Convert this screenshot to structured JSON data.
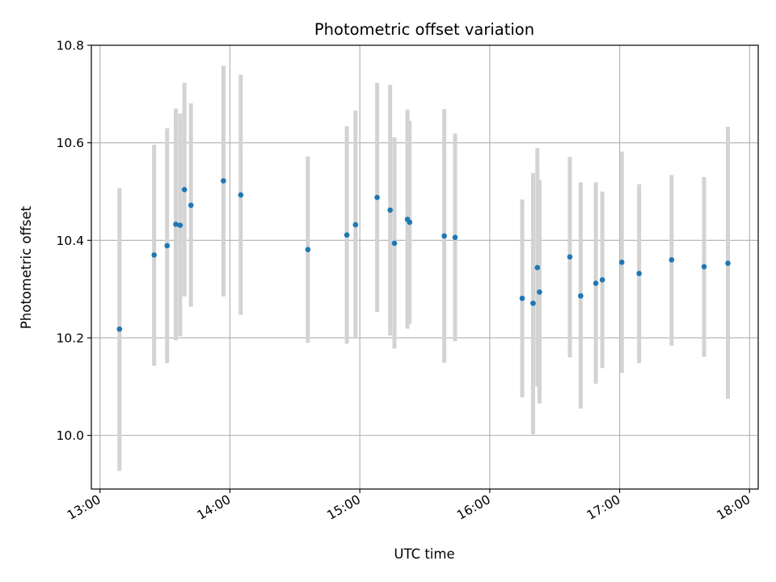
{
  "chart_data": {
    "type": "scatter",
    "title": "Photometric offset variation",
    "xlabel": "UTC time",
    "ylabel": "Photometric offset",
    "x_unit": "UTC time (HH:MM)",
    "xlim": [
      "12:56",
      "18:04"
    ],
    "ylim": [
      9.89,
      10.8
    ],
    "x_ticks": [
      "13:00",
      "14:00",
      "15:00",
      "16:00",
      "17:00",
      "18:00"
    ],
    "y_ticks": [
      "10.0",
      "10.2",
      "10.4",
      "10.6",
      "10.8"
    ],
    "grid": true,
    "errorbar_color": "#d3d3d3",
    "marker_color": "#1f77b4",
    "points": [
      {
        "x": "13:09",
        "y": 10.218,
        "ylow": 9.927,
        "yhigh": 10.507
      },
      {
        "x": "13:25",
        "y": 10.37,
        "ylow": 10.143,
        "yhigh": 10.596
      },
      {
        "x": "13:31",
        "y": 10.389,
        "ylow": 10.148,
        "yhigh": 10.63
      },
      {
        "x": "13:35",
        "y": 10.433,
        "ylow": 10.195,
        "yhigh": 10.67
      },
      {
        "x": "13:37",
        "y": 10.431,
        "ylow": 10.203,
        "yhigh": 10.66
      },
      {
        "x": "13:39",
        "y": 10.504,
        "ylow": 10.285,
        "yhigh": 10.723
      },
      {
        "x": "13:42",
        "y": 10.472,
        "ylow": 10.264,
        "yhigh": 10.681
      },
      {
        "x": "13:57",
        "y": 10.522,
        "ylow": 10.285,
        "yhigh": 10.758
      },
      {
        "x": "14:05",
        "y": 10.493,
        "ylow": 10.247,
        "yhigh": 10.74
      },
      {
        "x": "14:36",
        "y": 10.381,
        "ylow": 10.19,
        "yhigh": 10.572
      },
      {
        "x": "14:54",
        "y": 10.411,
        "ylow": 10.188,
        "yhigh": 10.634
      },
      {
        "x": "14:58",
        "y": 10.432,
        "ylow": 10.198,
        "yhigh": 10.666
      },
      {
        "x": "15:08",
        "y": 10.488,
        "ylow": 10.253,
        "yhigh": 10.723
      },
      {
        "x": "15:14",
        "y": 10.462,
        "ylow": 10.205,
        "yhigh": 10.719
      },
      {
        "x": "15:16",
        "y": 10.394,
        "ylow": 10.178,
        "yhigh": 10.611
      },
      {
        "x": "15:22",
        "y": 10.443,
        "ylow": 10.219,
        "yhigh": 10.668
      },
      {
        "x": "15:23",
        "y": 10.437,
        "ylow": 10.229,
        "yhigh": 10.645
      },
      {
        "x": "15:39",
        "y": 10.409,
        "ylow": 10.149,
        "yhigh": 10.669
      },
      {
        "x": "15:44",
        "y": 10.406,
        "ylow": 10.193,
        "yhigh": 10.619
      },
      {
        "x": "16:15",
        "y": 10.281,
        "ylow": 10.078,
        "yhigh": 10.484
      },
      {
        "x": "16:20",
        "y": 10.271,
        "ylow": 10.002,
        "yhigh": 10.538
      },
      {
        "x": "16:22",
        "y": 10.344,
        "ylow": 10.1,
        "yhigh": 10.589
      },
      {
        "x": "16:23",
        "y": 10.294,
        "ylow": 10.065,
        "yhigh": 10.524
      },
      {
        "x": "16:37",
        "y": 10.366,
        "ylow": 10.16,
        "yhigh": 10.571
      },
      {
        "x": "16:42",
        "y": 10.286,
        "ylow": 10.055,
        "yhigh": 10.519
      },
      {
        "x": "16:49",
        "y": 10.312,
        "ylow": 10.106,
        "yhigh": 10.519
      },
      {
        "x": "16:52",
        "y": 10.319,
        "ylow": 10.138,
        "yhigh": 10.5
      },
      {
        "x": "17:01",
        "y": 10.355,
        "ylow": 10.128,
        "yhigh": 10.582
      },
      {
        "x": "17:09",
        "y": 10.332,
        "ylow": 10.148,
        "yhigh": 10.515
      },
      {
        "x": "17:24",
        "y": 10.36,
        "ylow": 10.184,
        "yhigh": 10.534
      },
      {
        "x": "17:39",
        "y": 10.346,
        "ylow": 10.161,
        "yhigh": 10.53
      },
      {
        "x": "17:50",
        "y": 10.353,
        "ylow": 10.075,
        "yhigh": 10.633
      }
    ]
  }
}
